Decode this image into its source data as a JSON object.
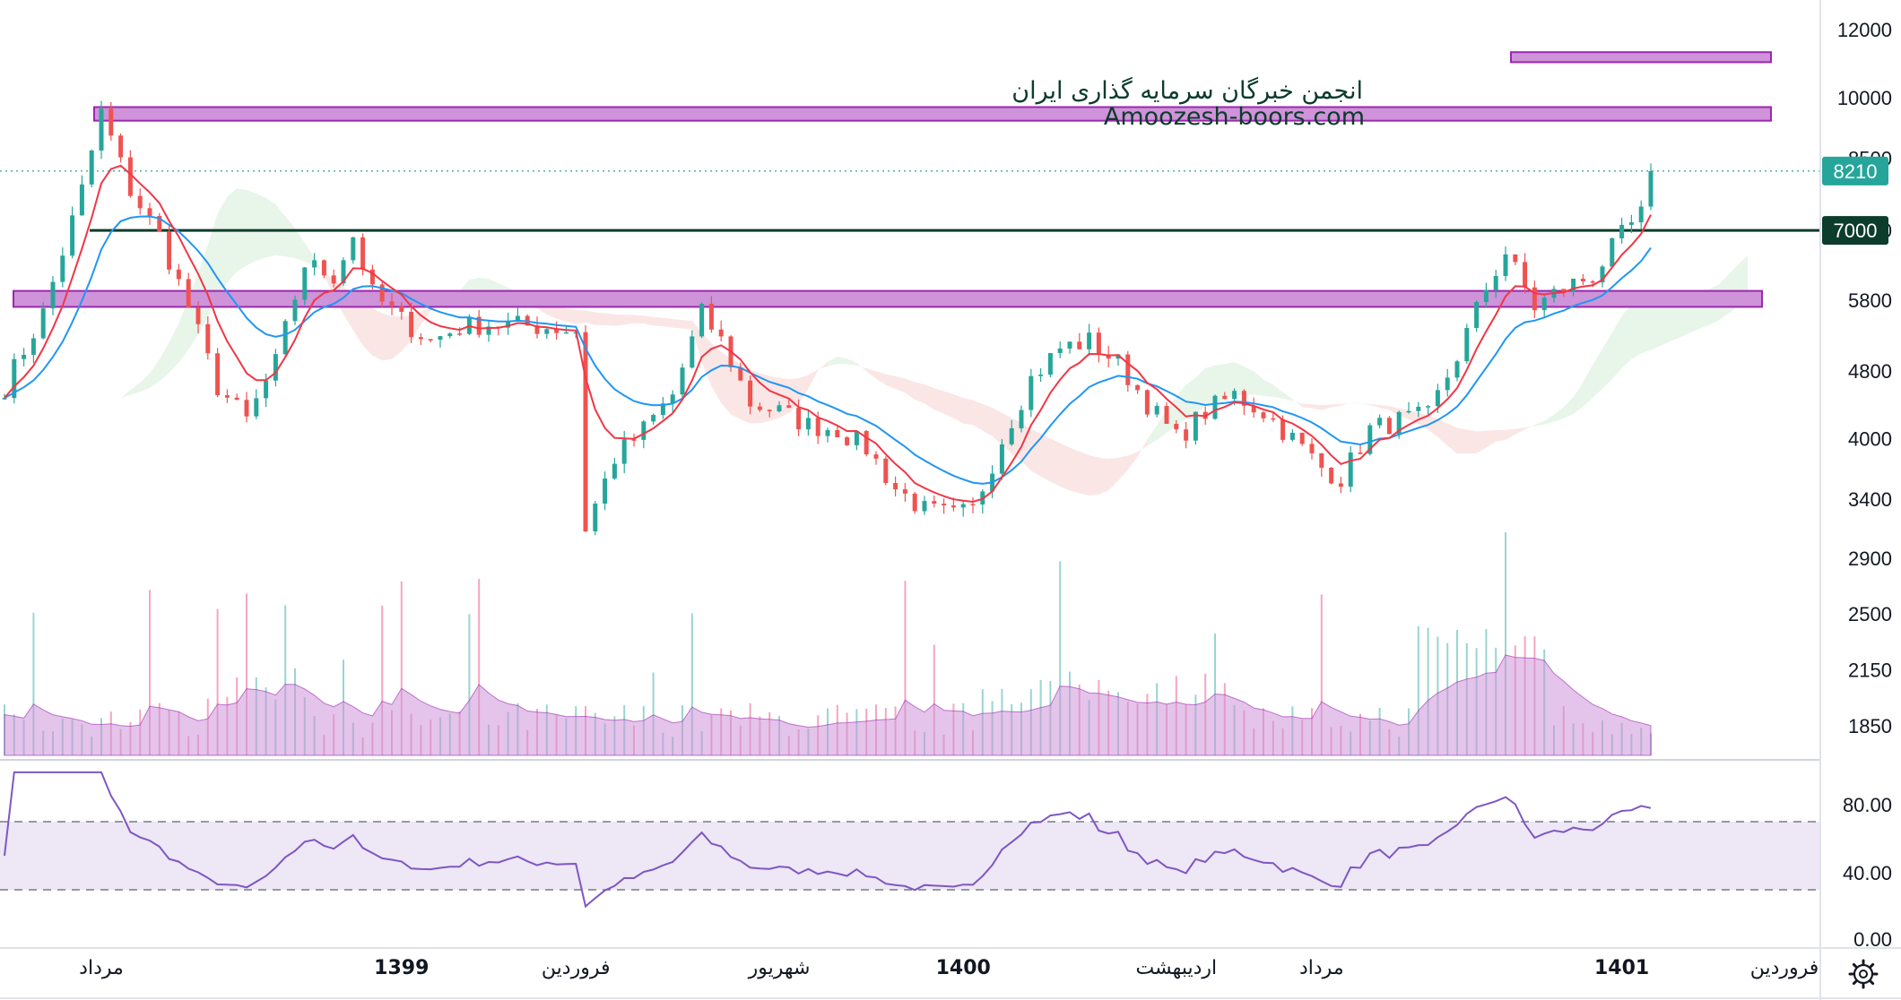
{
  "watermark": {
    "line1": "انجمن خبرگان سرمایه گذاری ایران",
    "line2": "Amoozesh-boors.com"
  },
  "price_axis": [
    "12000",
    "10000",
    "8500",
    "7000",
    "5800",
    "4800",
    "4000",
    "3400",
    "2900",
    "2500",
    "2150",
    "1850"
  ],
  "rsi_axis": [
    "80.00",
    "40.00",
    "0.00"
  ],
  "time_axis": [
    {
      "label": "مرداد",
      "bold": false
    },
    {
      "label": "1399",
      "bold": true
    },
    {
      "label": "فروردین",
      "bold": false
    },
    {
      "label": "شهریور",
      "bold": false
    },
    {
      "label": "1400",
      "bold": true
    },
    {
      "label": "اردیبهشت",
      "bold": false
    },
    {
      "label": "مرداد",
      "bold": false
    },
    {
      "label": "1401",
      "bold": true
    },
    {
      "label": "فروردین",
      "bold": false
    }
  ],
  "badges": {
    "last_price": "8210",
    "level": "7000"
  },
  "colors": {
    "up": "#26a69a",
    "down": "#ef5350",
    "zone_fill": "#ce93d8",
    "zone_stroke": "#9c27b0",
    "level_line": "#0c3c2b",
    "ma_fast": "#f23645",
    "ma_slow": "#2196f3",
    "rsi_line": "#7e57c2",
    "rsi_band": "#ede7f6",
    "volume_ma": "#ce93d8",
    "last_badge": "#26a69a"
  },
  "settings_icon": "gear-icon",
  "chart_data": {
    "type": "candlestick",
    "scale": "log",
    "y_range": [
      1700,
      13000
    ],
    "horizontal_levels": [
      7000
    ],
    "zones": [
      {
        "low": 9400,
        "high": 9750
      },
      {
        "low": 5700,
        "high": 5950
      },
      {
        "low": 11000,
        "high": 11300
      }
    ],
    "last_price": 8210,
    "rsi": {
      "upper": 70,
      "lower": 30,
      "last": 78
    },
    "price_path": [
      {
        "x": 0,
        "y": 4600
      },
      {
        "x": 4,
        "y": 5600
      },
      {
        "x": 8,
        "y": 7800
      },
      {
        "x": 10,
        "y": 9600
      },
      {
        "x": 13,
        "y": 7800
      },
      {
        "x": 16,
        "y": 6900
      },
      {
        "x": 19,
        "y": 5700
      },
      {
        "x": 22,
        "y": 4600
      },
      {
        "x": 25,
        "y": 4200
      },
      {
        "x": 28,
        "y": 4900
      },
      {
        "x": 31,
        "y": 6400
      },
      {
        "x": 34,
        "y": 6200
      },
      {
        "x": 36,
        "y": 6900
      },
      {
        "x": 38,
        "y": 5900
      },
      {
        "x": 41,
        "y": 5500
      },
      {
        "x": 44,
        "y": 5200
      },
      {
        "x": 47,
        "y": 5400
      },
      {
        "x": 50,
        "y": 5450
      },
      {
        "x": 56,
        "y": 5400
      },
      {
        "x": 59,
        "y": 5350
      },
      {
        "x": 60,
        "y": 3150
      },
      {
        "x": 63,
        "y": 3800
      },
      {
        "x": 66,
        "y": 4100
      },
      {
        "x": 69,
        "y": 4500
      },
      {
        "x": 72,
        "y": 5600
      },
      {
        "x": 74,
        "y": 5200
      },
      {
        "x": 77,
        "y": 4400
      },
      {
        "x": 80,
        "y": 4300
      },
      {
        "x": 83,
        "y": 4150
      },
      {
        "x": 86,
        "y": 4100
      },
      {
        "x": 89,
        "y": 3900
      },
      {
        "x": 92,
        "y": 3500
      },
      {
        "x": 95,
        "y": 3300
      },
      {
        "x": 98,
        "y": 3250
      },
      {
        "x": 100,
        "y": 3300
      },
      {
        "x": 103,
        "y": 4000
      },
      {
        "x": 106,
        "y": 4700
      },
      {
        "x": 109,
        "y": 5100
      },
      {
        "x": 112,
        "y": 5200
      },
      {
        "x": 115,
        "y": 4900
      },
      {
        "x": 118,
        "y": 4400
      },
      {
        "x": 121,
        "y": 4000
      },
      {
        "x": 124,
        "y": 4300
      },
      {
        "x": 127,
        "y": 4500
      },
      {
        "x": 130,
        "y": 4300
      },
      {
        "x": 133,
        "y": 4000
      },
      {
        "x": 136,
        "y": 3700
      },
      {
        "x": 138,
        "y": 3600
      },
      {
        "x": 141,
        "y": 4100
      },
      {
        "x": 144,
        "y": 4200
      },
      {
        "x": 147,
        "y": 4250
      },
      {
        "x": 150,
        "y": 5000
      },
      {
        "x": 153,
        "y": 6000
      },
      {
        "x": 155,
        "y": 6600
      },
      {
        "x": 158,
        "y": 5700
      },
      {
        "x": 161,
        "y": 6000
      },
      {
        "x": 164,
        "y": 6200
      },
      {
        "x": 167,
        "y": 6900
      },
      {
        "x": 169,
        "y": 7300
      },
      {
        "x": 170,
        "y": 8210
      }
    ]
  }
}
